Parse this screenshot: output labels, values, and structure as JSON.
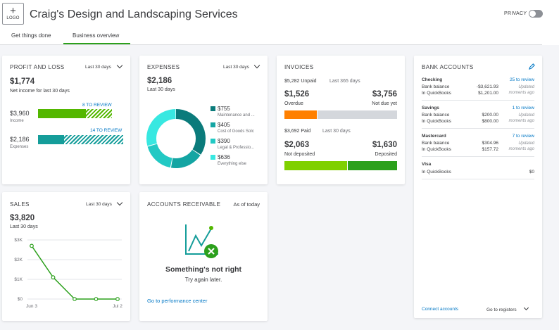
{
  "header": {
    "logo_label": "LOGO",
    "company_name": "Craig's Design and Landscaping Services",
    "privacy_label": "PRIVACY",
    "tabs": [
      {
        "label": "Get things done",
        "active": false
      },
      {
        "label": "Business overview",
        "active": true
      }
    ]
  },
  "colors": {
    "accent": "#2ca01c",
    "link": "#0077c5",
    "teal": "#159d9a",
    "overdue": "#ff8000"
  },
  "profit_loss": {
    "title": "PROFIT AND LOSS",
    "period": "Last 30 days",
    "net_income": "$1,774",
    "net_income_label": "Net income for last 30 days",
    "income_value": "$3,960",
    "income_label": "Income",
    "income_review": "8 TO REVIEW",
    "expenses_value": "$2,186",
    "expenses_label": "Expenses",
    "expenses_review": "14 TO REVIEW"
  },
  "expenses": {
    "title": "EXPENSES",
    "period": "Last 30 days",
    "total": "$2,186",
    "total_label": "Last 30 days",
    "categories": [
      {
        "amount": "$755",
        "name": "Maintenance and ...",
        "color": "#0b7b7b",
        "value": 755
      },
      {
        "amount": "$405",
        "name": "Cost of Goods Solc",
        "color": "#14a5a3",
        "value": 405
      },
      {
        "amount": "$390",
        "name": "Legal & Professio...",
        "color": "#22c9c4",
        "value": 390
      },
      {
        "amount": "$636",
        "name": "Everything else",
        "color": "#38e8e1",
        "value": 636
      }
    ]
  },
  "invoices": {
    "title": "INVOICES",
    "unpaid": "$5,282 Unpaid",
    "unpaid_period": "Last 365 days",
    "overdue_value": "$1,526",
    "overdue_label": "Overdue",
    "not_due_value": "$3,756",
    "not_due_label": "Not due yet",
    "paid": "$3,692 Paid",
    "paid_period": "Last 30 days",
    "not_deposited_value": "$2,063",
    "not_deposited_label": "Not deposited",
    "deposited_value": "$1,630",
    "deposited_label": "Deposited"
  },
  "bank_accounts": {
    "title": "BANK ACCOUNTS",
    "accounts": [
      {
        "name": "Checking",
        "review": "25 to review",
        "bank_label": "Bank balance",
        "bank_value": "-$3,621.93",
        "qb_label": "In QuickBooks",
        "qb_value": "$1,201.00",
        "updated": "Updated",
        "ago": "moments ago"
      },
      {
        "name": "Savings",
        "review": "1 to review",
        "bank_label": "Bank balance",
        "bank_value": "$200.00",
        "qb_label": "In QuickBooks",
        "qb_value": "$800.00",
        "updated": "Updated",
        "ago": "moments ago"
      },
      {
        "name": "Mastercard",
        "review": "7 to review",
        "bank_label": "Bank balance",
        "bank_value": "$304.96",
        "qb_label": "In QuickBooks",
        "qb_value": "$157.72",
        "updated": "Updated",
        "ago": "moments ago"
      },
      {
        "name": "Visa",
        "qb_label": "In QuickBooks",
        "qb_value": "$0"
      }
    ],
    "connect_label": "Connect accounts",
    "registers_label": "Go to registers"
  },
  "sales": {
    "title": "SALES",
    "period": "Last 30 days",
    "total": "$3,820",
    "total_label": "Last 30 days"
  },
  "accounts_receivable": {
    "title": "ACCOUNTS RECEIVABLE",
    "as_of": "As of today",
    "error_title": "Something's not right",
    "error_sub": "Try again later.",
    "link": "Go to performance center"
  },
  "chart_data": {
    "type": "line",
    "x": [
      "Jun 3",
      "",
      "",
      "",
      "Jul 2"
    ],
    "values": [
      2700,
      1100,
      0,
      0,
      0
    ],
    "ylim": [
      0,
      3000
    ],
    "yticks": [
      "$0",
      "$1K",
      "$2K",
      "$3K"
    ],
    "xticks": [
      "Jun 3",
      "Jul 2"
    ],
    "grid": true,
    "color": "#2ca01c"
  }
}
